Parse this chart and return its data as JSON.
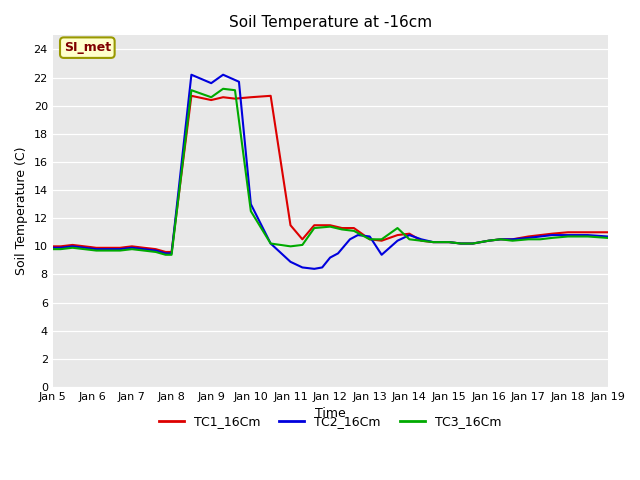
{
  "title": "Soil Temperature at -16cm",
  "xlabel": "Time",
  "ylabel": "Soil Temperature (C)",
  "ylim": [
    0,
    25
  ],
  "yticks": [
    0,
    2,
    4,
    6,
    8,
    10,
    12,
    14,
    16,
    18,
    20,
    22,
    24
  ],
  "bg_color": "#e8e8e8",
  "fig_color": "#ffffff",
  "annotation_text": "SI_met",
  "annotation_bg": "#ffffcc",
  "annotation_border": "#999900",
  "annotation_fg": "#800000",
  "legend_labels": [
    "TC1_16Cm",
    "TC2_16Cm",
    "TC3_16Cm"
  ],
  "legend_colors": [
    "#dd0000",
    "#0000dd",
    "#00aa00"
  ],
  "x_labels": [
    "Jan 5",
    "Jan 6",
    "Jan 7",
    "Jan 8",
    "Jan 9",
    "Jan 10",
    "Jan 11",
    "Jan 12",
    "Jan 13",
    "Jan 14",
    "Jan 15",
    "Jan 16",
    "Jan 17",
    "Jan 18",
    "Jan 19"
  ],
  "TC1_x": [
    0.0,
    0.2,
    0.5,
    0.8,
    1.1,
    1.4,
    1.7,
    2.0,
    2.3,
    2.6,
    2.85,
    3.0,
    3.5,
    4.0,
    4.3,
    4.6,
    5.0,
    5.5,
    6.0,
    6.3,
    6.6,
    7.0,
    7.3,
    7.6,
    8.0,
    8.3,
    8.7,
    9.0,
    9.3,
    9.6,
    10.0,
    10.3,
    10.6,
    11.0,
    11.3,
    11.6,
    12.0,
    12.3,
    12.6,
    13.0,
    13.5,
    14.0
  ],
  "TC1_y": [
    10.0,
    10.0,
    10.1,
    10.0,
    9.9,
    9.9,
    9.9,
    10.0,
    9.9,
    9.8,
    9.6,
    9.6,
    20.7,
    20.4,
    20.6,
    20.5,
    20.6,
    20.7,
    11.5,
    10.5,
    11.5,
    11.5,
    11.3,
    11.3,
    10.5,
    10.4,
    10.8,
    10.9,
    10.4,
    10.3,
    10.3,
    10.2,
    10.2,
    10.4,
    10.5,
    10.5,
    10.7,
    10.8,
    10.9,
    11.0,
    11.0,
    11.0
  ],
  "TC2_x": [
    0.0,
    0.2,
    0.5,
    0.8,
    1.1,
    1.4,
    1.7,
    2.0,
    2.3,
    2.6,
    2.85,
    3.0,
    3.5,
    4.0,
    4.3,
    4.7,
    5.0,
    5.5,
    6.0,
    6.3,
    6.6,
    6.8,
    7.0,
    7.2,
    7.5,
    7.7,
    8.0,
    8.3,
    8.7,
    9.0,
    9.3,
    9.6,
    10.0,
    10.3,
    10.6,
    11.0,
    11.3,
    11.6,
    12.0,
    12.3,
    12.6,
    13.0,
    13.5,
    14.0
  ],
  "TC2_y": [
    9.9,
    9.9,
    10.0,
    9.9,
    9.8,
    9.8,
    9.8,
    9.9,
    9.8,
    9.7,
    9.5,
    9.5,
    22.2,
    21.6,
    22.2,
    21.7,
    13.0,
    10.2,
    8.9,
    8.5,
    8.4,
    8.5,
    9.2,
    9.5,
    10.5,
    10.8,
    10.7,
    9.4,
    10.4,
    10.8,
    10.5,
    10.3,
    10.3,
    10.2,
    10.2,
    10.4,
    10.5,
    10.5,
    10.6,
    10.7,
    10.8,
    10.8,
    10.8,
    10.7
  ],
  "TC3_x": [
    0.0,
    0.2,
    0.5,
    0.8,
    1.1,
    1.4,
    1.7,
    2.0,
    2.3,
    2.6,
    2.85,
    3.0,
    3.5,
    4.0,
    4.3,
    4.6,
    5.0,
    5.5,
    6.0,
    6.3,
    6.6,
    7.0,
    7.3,
    7.6,
    8.0,
    8.3,
    8.7,
    9.0,
    9.3,
    9.6,
    10.0,
    10.3,
    10.6,
    11.0,
    11.3,
    11.6,
    12.0,
    12.3,
    12.6,
    13.0,
    13.5,
    14.0
  ],
  "TC3_y": [
    9.8,
    9.8,
    9.9,
    9.8,
    9.7,
    9.7,
    9.7,
    9.8,
    9.7,
    9.6,
    9.4,
    9.4,
    21.1,
    20.6,
    21.2,
    21.1,
    12.5,
    10.2,
    10.0,
    10.1,
    11.3,
    11.4,
    11.2,
    11.1,
    10.5,
    10.5,
    11.3,
    10.5,
    10.4,
    10.3,
    10.3,
    10.2,
    10.2,
    10.4,
    10.5,
    10.4,
    10.5,
    10.5,
    10.6,
    10.7,
    10.7,
    10.6
  ]
}
